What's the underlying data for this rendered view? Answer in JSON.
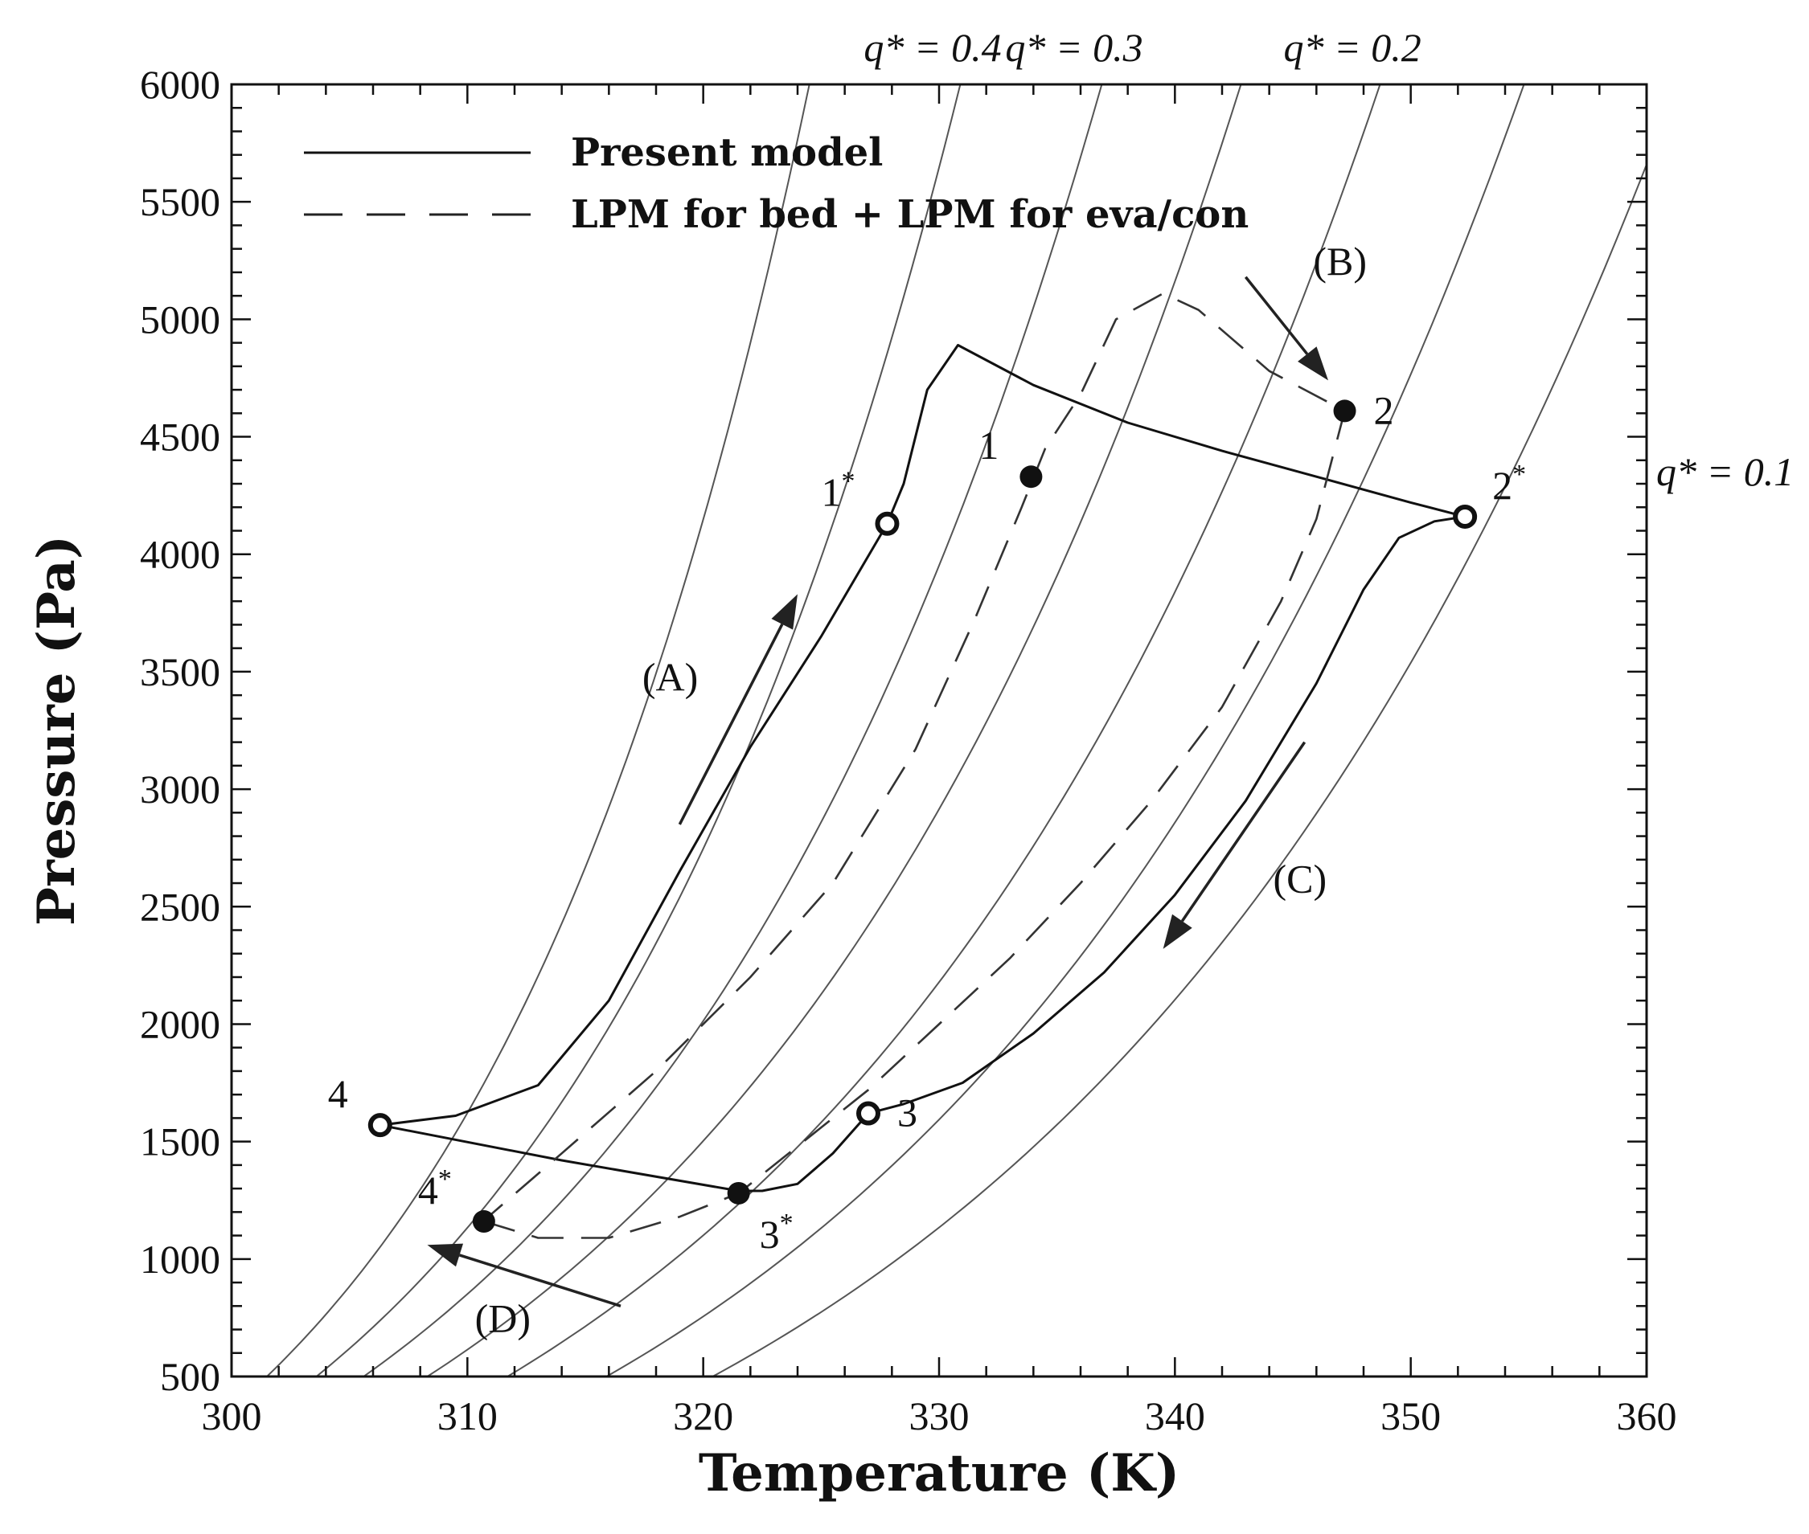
{
  "chart_data": {
    "type": "line",
    "xlabel": "Temperature (K)",
    "ylabel": "Pressure (Pa)",
    "xlim": [
      300,
      360
    ],
    "ylim": [
      500,
      6000
    ],
    "x_ticks": [
      300,
      310,
      320,
      330,
      340,
      350,
      360
    ],
    "y_ticks": [
      500,
      1000,
      1500,
      2000,
      2500,
      3000,
      3500,
      4000,
      4500,
      5000,
      5500,
      6000
    ],
    "x_minor_step": 2,
    "y_minor_step": 100,
    "isosteres": {
      "curves": [
        {
          "T0": 301.5,
          "T6000": 324.5
        },
        {
          "T0": 303.6,
          "T6000": 330.9
        },
        {
          "T0": 305.6,
          "T6000": 336.9
        },
        {
          "T0": 308.3,
          "T6000": 342.8
        },
        {
          "T0": 311.7,
          "T6000": 348.7
        },
        {
          "T0": 315.9,
          "T6000": 354.8
        },
        {
          "T0": 320.4,
          "T6000": 361.3
        }
      ],
      "labels": [
        {
          "text": "q* = 0.4",
          "curve": 1
        },
        {
          "text": "q* = 0.3",
          "curve": 2
        },
        {
          "text": "q* = 0.2",
          "curve": 4
        },
        {
          "text": "q* = 0.1",
          "curve": 6
        }
      ]
    },
    "series": [
      {
        "name": "Present model",
        "style": "solid",
        "points": [
          [
            306.3,
            1570
          ],
          [
            309.5,
            1610
          ],
          [
            313.0,
            1740
          ],
          [
            316.0,
            2100
          ],
          [
            319.0,
            2650
          ],
          [
            322.0,
            3180
          ],
          [
            325.0,
            3650
          ],
          [
            327.8,
            4130
          ],
          [
            328.5,
            4300
          ],
          [
            329.5,
            4700
          ],
          [
            330.8,
            4890
          ],
          [
            334.0,
            4720
          ],
          [
            338.0,
            4560
          ],
          [
            342.0,
            4440
          ],
          [
            346.0,
            4330
          ],
          [
            350.0,
            4220
          ],
          [
            352.3,
            4160
          ],
          [
            351.0,
            4140
          ],
          [
            349.5,
            4070
          ],
          [
            348.0,
            3850
          ],
          [
            346.0,
            3450
          ],
          [
            343.0,
            2950
          ],
          [
            340.0,
            2550
          ],
          [
            337.0,
            2220
          ],
          [
            334.0,
            1960
          ],
          [
            331.0,
            1750
          ],
          [
            328.5,
            1660
          ],
          [
            327.0,
            1620
          ],
          [
            325.5,
            1450
          ],
          [
            324.0,
            1320
          ],
          [
            322.5,
            1290
          ],
          [
            321.5,
            1290
          ],
          [
            314.0,
            1420
          ],
          [
            306.3,
            1570
          ]
        ]
      },
      {
        "name": "LPM for bed + LPM for eva/con",
        "style": "dashed",
        "points": [
          [
            310.7,
            1160
          ],
          [
            313.0,
            1090
          ],
          [
            316.0,
            1090
          ],
          [
            319.0,
            1180
          ],
          [
            321.5,
            1280
          ],
          [
            324.0,
            1480
          ],
          [
            327.0,
            1720
          ],
          [
            330.0,
            2000
          ],
          [
            333.0,
            2280
          ],
          [
            336.0,
            2600
          ],
          [
            339.0,
            2950
          ],
          [
            342.0,
            3350
          ],
          [
            344.5,
            3800
          ],
          [
            346.0,
            4150
          ],
          [
            347.2,
            4610
          ],
          [
            344.0,
            4780
          ],
          [
            341.0,
            5040
          ],
          [
            339.5,
            5110
          ],
          [
            337.5,
            5000
          ],
          [
            336.0,
            4680
          ],
          [
            334.5,
            4450
          ],
          [
            333.5,
            4200
          ],
          [
            331.5,
            3720
          ],
          [
            329.0,
            3170
          ],
          [
            325.5,
            2600
          ],
          [
            322.0,
            2200
          ],
          [
            318.0,
            1800
          ],
          [
            314.0,
            1450
          ],
          [
            311.0,
            1190
          ]
        ]
      }
    ],
    "points": [
      {
        "label": "1",
        "x": 333.9,
        "y": 4330,
        "fill": "filled",
        "label_dir": "left-up"
      },
      {
        "label": "2",
        "x": 347.2,
        "y": 4610,
        "fill": "filled",
        "label_dir": "right"
      },
      {
        "label": "3*",
        "x": 321.5,
        "y": 1280,
        "fill": "filled",
        "label_dir": "below-right"
      },
      {
        "label": "4*",
        "x": 310.7,
        "y": 1160,
        "fill": "filled",
        "label_dir": "left-up"
      },
      {
        "label": "1*",
        "x": 327.8,
        "y": 4130,
        "fill": "open",
        "label_dir": "left-up"
      },
      {
        "label": "2*",
        "x": 352.3,
        "y": 4160,
        "fill": "open",
        "label_dir": "right-up"
      },
      {
        "label": "3",
        "x": 327.0,
        "y": 1620,
        "fill": "open",
        "label_dir": "right"
      },
      {
        "label": "4",
        "x": 306.3,
        "y": 1570,
        "fill": "open",
        "label_dir": "left-up"
      }
    ],
    "annotations": [
      {
        "text": "(A)",
        "x": 318.6,
        "y": 3420
      },
      {
        "text": "(B)",
        "x": 347.0,
        "y": 5190
      },
      {
        "text": "(C)",
        "x": 345.3,
        "y": 2560
      },
      {
        "text": "(D)",
        "x": 311.5,
        "y": 690
      }
    ],
    "arrows": [
      {
        "name": "A",
        "from": [
          319.0,
          2850
        ],
        "to": [
          324.0,
          3830
        ]
      },
      {
        "name": "B",
        "from": [
          343.0,
          5180
        ],
        "to": [
          346.5,
          4740
        ]
      },
      {
        "name": "C",
        "from": [
          345.5,
          3200
        ],
        "to": [
          339.5,
          2320
        ]
      },
      {
        "name": "D",
        "from": [
          316.5,
          800
        ],
        "to": [
          308.3,
          1060
        ]
      }
    ],
    "legend": {
      "placement": "top-left",
      "entries": [
        {
          "label": "Present model",
          "style": "solid"
        },
        {
          "label": "LPM for bed + LPM for eva/con",
          "style": "dashed"
        }
      ]
    }
  }
}
